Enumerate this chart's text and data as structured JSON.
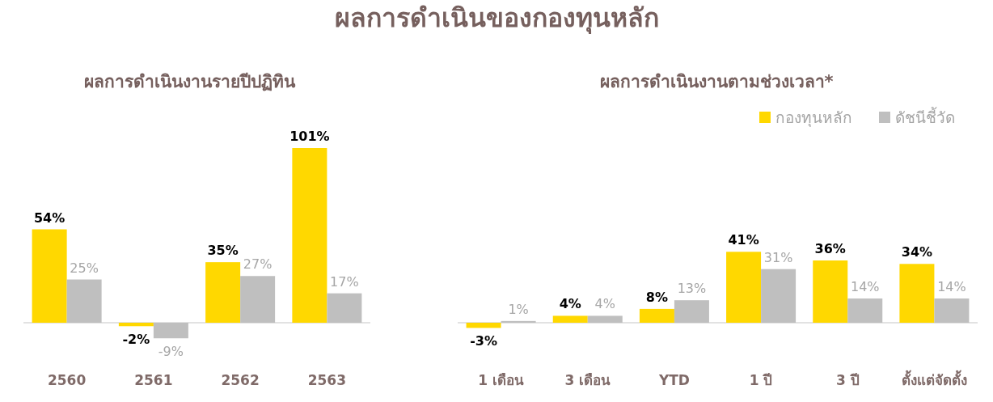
{
  "chart_data": [
    {
      "type": "bar",
      "title": "ผลการดำเนินของกองทุนหลัก",
      "subtitle": "ผลการดำเนินงานรายปีปฏิทิน",
      "categories": [
        "2560",
        "2561",
        "2562",
        "2563"
      ],
      "series": [
        {
          "color": "#ffd800",
          "values": [
            54,
            -2,
            35,
            101
          ],
          "value_labels": [
            "54%",
            "-2%",
            "35%",
            "101%"
          ]
        },
        {
          "color": "#bfbfbf",
          "values": [
            25,
            -9,
            27,
            17
          ],
          "value_labels": [
            "25%",
            "-9%",
            "27%",
            "17%"
          ]
        }
      ]
    },
    {
      "type": "bar",
      "title": "ผลการดำเนินงานตามช่วงเวลา*",
      "legend": "top right",
      "categories": [
        "1 เดือน",
        "3 เดือน",
        "YTD",
        "1 ปี",
        "3 ปี",
        "ตั้งแต่จัดตั้ง"
      ],
      "series": [
        {
          "name": "กองทุนหลัก",
          "color": "#ffd800",
          "values": [
            -3,
            4,
            8,
            41,
            36,
            34
          ],
          "value_labels": [
            "-3%",
            "4%",
            "8%",
            "41%",
            "36%",
            "34%"
          ]
        },
        {
          "name": "ดัชนีชี้วัด",
          "color": "#bfbfbf",
          "values": [
            1,
            4,
            13,
            31,
            14,
            14
          ],
          "value_labels": [
            "1%",
            "4%",
            "13%",
            "31%",
            "14%",
            "14%"
          ]
        }
      ]
    }
  ]
}
